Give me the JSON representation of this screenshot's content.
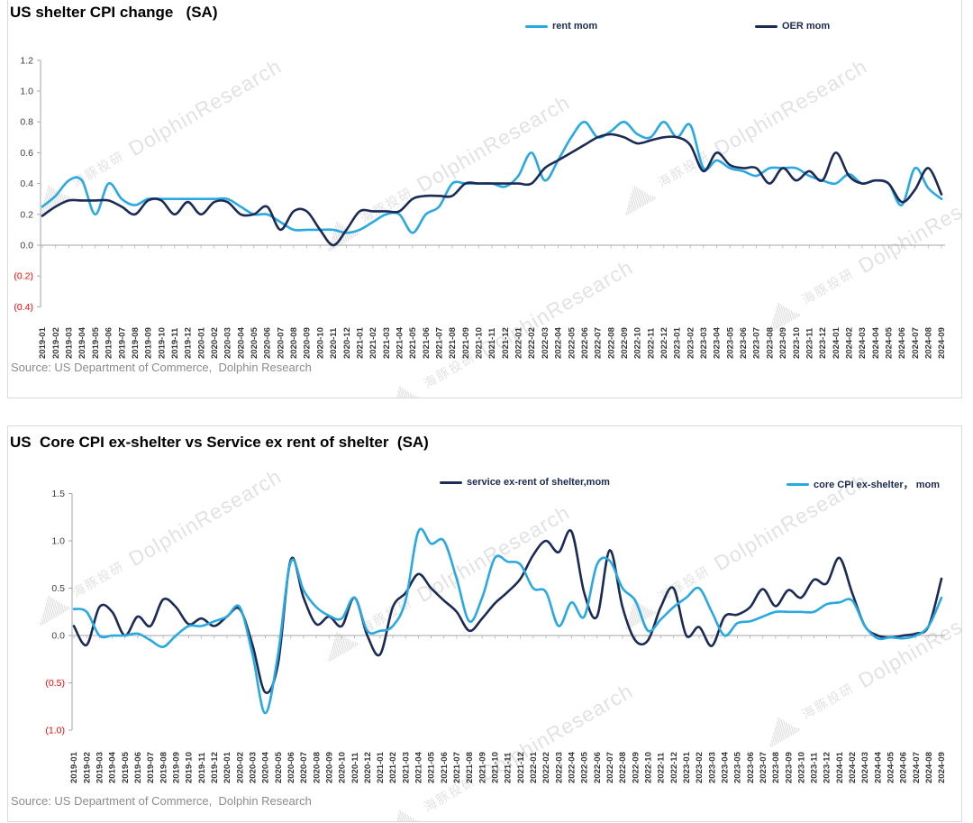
{
  "watermark": {
    "cn": "海豚投研",
    "en": "DolphinResearch"
  },
  "panels": [
    {
      "title": "US shelter CPI change   (SA)",
      "source": "Source: US Department of Commerce,  Dolphin Research",
      "legend": [
        {
          "label": "rent mom",
          "color": "#29a9e1"
        },
        {
          "label": "OER mom",
          "color": "#1b2b55"
        }
      ]
    },
    {
      "title": "US  Core CPI ex-shelter vs Service ex rent of shelter  (SA)",
      "source": "Source: US Department of Commerce,  Dolphin Research",
      "legend": [
        {
          "label": "service ex-rent of shelter,mom",
          "color": "#1b2b55"
        },
        {
          "label": "core CPI ex-shelter， mom",
          "color": "#29a9e1"
        }
      ]
    }
  ],
  "chart_data": [
    {
      "type": "line",
      "title": "US shelter CPI change (SA)",
      "xlabel": "",
      "ylabel": "",
      "ylim": [
        -0.4,
        1.2
      ],
      "yticks": [
        1.2,
        1.0,
        0.8,
        0.6,
        0.4,
        0.2,
        0.0,
        -0.2,
        -0.4
      ],
      "grid": false,
      "legend_position": "top",
      "negative_tick_color": "#ff0000",
      "categories": [
        "2019-01",
        "2019-02",
        "2019-03",
        "2019-04",
        "2019-05",
        "2019-06",
        "2019-07",
        "2019-08",
        "2019-09",
        "2019-10",
        "2019-11",
        "2019-12",
        "2020-01",
        "2020-02",
        "2020-03",
        "2020-04",
        "2020-05",
        "2020-06",
        "2020-07",
        "2020-08",
        "2020-09",
        "2020-10",
        "2020-11",
        "2020-12",
        "2021-01",
        "2021-02",
        "2021-03",
        "2021-04",
        "2021-05",
        "2021-06",
        "2021-07",
        "2021-08",
        "2021-09",
        "2021-10",
        "2021-11",
        "2021-12",
        "2022-01",
        "2022-02",
        "2022-03",
        "2022-04",
        "2022-05",
        "2022-06",
        "2022-07",
        "2022-08",
        "2022-09",
        "2022-10",
        "2022-11",
        "2022-12",
        "2023-01",
        "2023-02",
        "2023-03",
        "2023-04",
        "2023-05",
        "2023-06",
        "2023-07",
        "2023-08",
        "2023-09",
        "2023-10",
        "2023-11",
        "2023-12",
        "2024-01",
        "2024-02",
        "2024-03",
        "2024-04",
        "2024-05",
        "2024-06",
        "2024-07",
        "2024-08",
        "2024-09"
      ],
      "series": [
        {
          "name": "rent mom",
          "color": "#29a9e1",
          "values": [
            0.25,
            0.32,
            0.42,
            0.42,
            0.2,
            0.4,
            0.3,
            0.26,
            0.3,
            0.3,
            0.3,
            0.3,
            0.3,
            0.3,
            0.3,
            0.25,
            0.2,
            0.2,
            0.15,
            0.1,
            0.1,
            0.1,
            0.1,
            0.08,
            0.1,
            0.15,
            0.2,
            0.2,
            0.08,
            0.2,
            0.25,
            0.4,
            0.4,
            0.4,
            0.4,
            0.38,
            0.45,
            0.6,
            0.42,
            0.55,
            0.7,
            0.8,
            0.7,
            0.74,
            0.8,
            0.72,
            0.7,
            0.8,
            0.7,
            0.78,
            0.5,
            0.55,
            0.5,
            0.48,
            0.45,
            0.5,
            0.5,
            0.5,
            0.45,
            0.42,
            0.4,
            0.46,
            0.4,
            0.42,
            0.4,
            0.26,
            0.5,
            0.37,
            0.3
          ]
        },
        {
          "name": "OER mom",
          "color": "#1b2b55",
          "values": [
            0.19,
            0.25,
            0.29,
            0.29,
            0.29,
            0.29,
            0.25,
            0.2,
            0.29,
            0.29,
            0.2,
            0.28,
            0.2,
            0.28,
            0.28,
            0.2,
            0.2,
            0.25,
            0.1,
            0.22,
            0.22,
            0.1,
            0.0,
            0.1,
            0.22,
            0.22,
            0.22,
            0.22,
            0.3,
            0.32,
            0.32,
            0.32,
            0.4,
            0.4,
            0.4,
            0.4,
            0.4,
            0.4,
            0.5,
            0.55,
            0.6,
            0.65,
            0.7,
            0.72,
            0.7,
            0.66,
            0.68,
            0.7,
            0.7,
            0.65,
            0.48,
            0.6,
            0.52,
            0.5,
            0.5,
            0.4,
            0.5,
            0.42,
            0.48,
            0.42,
            0.6,
            0.45,
            0.4,
            0.42,
            0.4,
            0.28,
            0.36,
            0.5,
            0.33
          ]
        }
      ]
    },
    {
      "type": "line",
      "title": "US Core CPI ex-shelter vs Service ex rent of shelter (SA)",
      "xlabel": "",
      "ylabel": "",
      "ylim": [
        -1.0,
        1.5
      ],
      "yticks": [
        1.5,
        1.0,
        0.5,
        0.0,
        -0.5,
        -1.0
      ],
      "grid": false,
      "legend_position": "top",
      "negative_tick_color": "#ff0000",
      "categories": [
        "2019-01",
        "2019-02",
        "2019-03",
        "2019-04",
        "2019-05",
        "2019-06",
        "2019-07",
        "2019-08",
        "2019-09",
        "2019-10",
        "2019-11",
        "2019-12",
        "2020-01",
        "2020-02",
        "2020-03",
        "2020-04",
        "2020-05",
        "2020-06",
        "2020-07",
        "2020-08",
        "2020-09",
        "2020-10",
        "2020-11",
        "2020-12",
        "2021-01",
        "2021-02",
        "2021-03",
        "2021-04",
        "2021-05",
        "2021-06",
        "2021-07",
        "2021-08",
        "2021-09",
        "2021-10",
        "2021-11",
        "2021-12",
        "2022-01",
        "2022-02",
        "2022-03",
        "2022-04",
        "2022-05",
        "2022-06",
        "2022-07",
        "2022-08",
        "2022-09",
        "2022-10",
        "2022-11",
        "2022-12",
        "2023-01",
        "2023-02",
        "2023-03",
        "2023-04",
        "2023-05",
        "2023-06",
        "2023-07",
        "2023-08",
        "2023-09",
        "2023-10",
        "2023-11",
        "2023-12",
        "2024-01",
        "2024-02",
        "2024-03",
        "2024-04",
        "2024-05",
        "2024-06",
        "2024-07",
        "2024-08",
        "2024-09"
      ],
      "series": [
        {
          "name": "service ex-rent of shelter,mom",
          "color": "#1b2b55",
          "values": [
            0.1,
            -0.1,
            0.3,
            0.25,
            0.0,
            0.2,
            0.1,
            0.38,
            0.3,
            0.12,
            0.18,
            0.1,
            0.2,
            0.28,
            -0.1,
            -0.6,
            -0.3,
            0.8,
            0.4,
            0.12,
            0.2,
            0.1,
            0.4,
            0.0,
            -0.2,
            0.3,
            0.45,
            0.65,
            0.5,
            0.37,
            0.25,
            0.05,
            0.18,
            0.34,
            0.46,
            0.6,
            0.85,
            1.0,
            0.88,
            1.1,
            0.45,
            0.2,
            0.9,
            0.3,
            -0.05,
            -0.05,
            0.3,
            0.5,
            0.0,
            0.09,
            -0.11,
            0.2,
            0.22,
            0.3,
            0.49,
            0.31,
            0.48,
            0.4,
            0.59,
            0.55,
            0.82,
            0.45,
            0.1,
            0.0,
            -0.02,
            0.0,
            0.02,
            0.1,
            0.6
          ]
        },
        {
          "name": "core CPI ex-shelter, mom",
          "color": "#29a9e1",
          "values": [
            0.28,
            0.25,
            0.0,
            0.0,
            0.0,
            0.02,
            -0.05,
            -0.12,
            0.0,
            0.1,
            0.1,
            0.15,
            0.2,
            0.3,
            -0.2,
            -0.82,
            -0.2,
            0.78,
            0.48,
            0.3,
            0.21,
            0.18,
            0.4,
            0.05,
            0.05,
            0.1,
            0.37,
            1.1,
            0.97,
            1.0,
            0.6,
            0.15,
            0.4,
            0.82,
            0.78,
            0.75,
            0.5,
            0.46,
            0.1,
            0.35,
            0.2,
            0.75,
            0.79,
            0.5,
            0.37,
            0.05,
            0.17,
            0.3,
            0.4,
            0.5,
            0.25,
            0.0,
            0.13,
            0.15,
            0.2,
            0.25,
            0.25,
            0.25,
            0.25,
            0.33,
            0.35,
            0.37,
            0.1,
            -0.03,
            -0.02,
            -0.03,
            0.0,
            0.1,
            0.4
          ]
        }
      ]
    }
  ]
}
